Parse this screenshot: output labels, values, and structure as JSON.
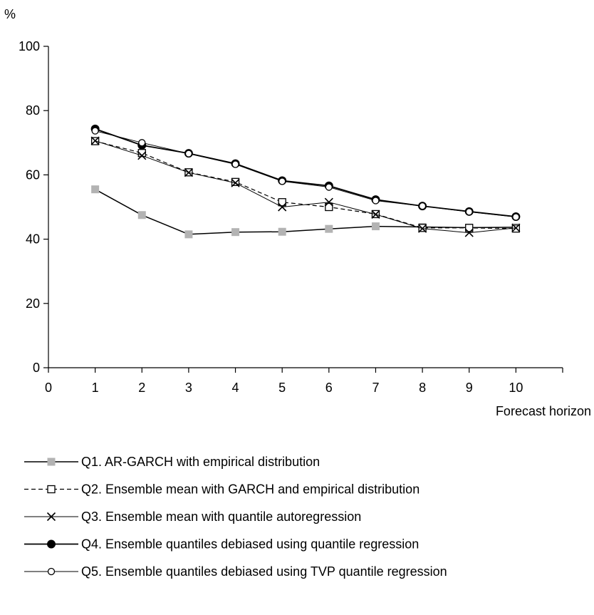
{
  "chart_data": {
    "type": "line",
    "title": "",
    "xlabel": "Forecast horizon",
    "ylabel": "%",
    "xlim": [
      0,
      11
    ],
    "ylim": [
      0,
      100
    ],
    "x_ticks": [
      0,
      1,
      2,
      3,
      4,
      5,
      6,
      7,
      8,
      9,
      10
    ],
    "y_ticks": [
      0,
      20,
      40,
      60,
      80,
      100
    ],
    "grid": false,
    "legend_position": "bottom",
    "x": [
      1,
      2,
      3,
      4,
      5,
      6,
      7,
      8,
      9,
      10
    ],
    "series": [
      {
        "name": "Q1. AR-GARCH with empirical distribution",
        "values": [
          55.5,
          47.5,
          41.5,
          42.2,
          42.3,
          43.2,
          44.0,
          43.8,
          43.6,
          43.7
        ],
        "line_color": "#000000",
        "marker_color": "#b3b3b3",
        "marker": "filled-square",
        "dash": "solid"
      },
      {
        "name": "Q2. Ensemble mean with GARCH and empirical distribution",
        "values": [
          70.5,
          66.8,
          60.8,
          57.8,
          51.5,
          50.0,
          47.8,
          43.5,
          43.5,
          43.3
        ],
        "line_color": "#000000",
        "marker_color": "#000000",
        "marker": "open-square",
        "dash": "dashed"
      },
      {
        "name": "Q3. Ensemble mean with quantile autoregression",
        "values": [
          70.6,
          66.0,
          60.7,
          57.5,
          50.0,
          51.5,
          47.7,
          43.3,
          42.0,
          43.5
        ],
        "line_color": "#000000",
        "marker_color": "#000000",
        "marker": "x",
        "dash": "solid"
      },
      {
        "name": "Q4. Ensemble quantiles debiased using quantile regression",
        "values": [
          74.3,
          69.2,
          66.7,
          63.5,
          58.2,
          56.6,
          52.3,
          50.3,
          48.6,
          47.0
        ],
        "line_color": "#000000",
        "marker_color": "#000000",
        "marker": "filled-circle",
        "dash": "solid"
      },
      {
        "name": "Q5. Ensemble quantiles debiased using TVP quantile regression",
        "values": [
          73.7,
          70.0,
          66.6,
          63.3,
          58.0,
          56.2,
          52.0,
          50.3,
          48.5,
          46.9
        ],
        "line_color": "#000000",
        "marker_color": "#000000",
        "marker": "open-circle",
        "dash": "solid"
      }
    ]
  }
}
